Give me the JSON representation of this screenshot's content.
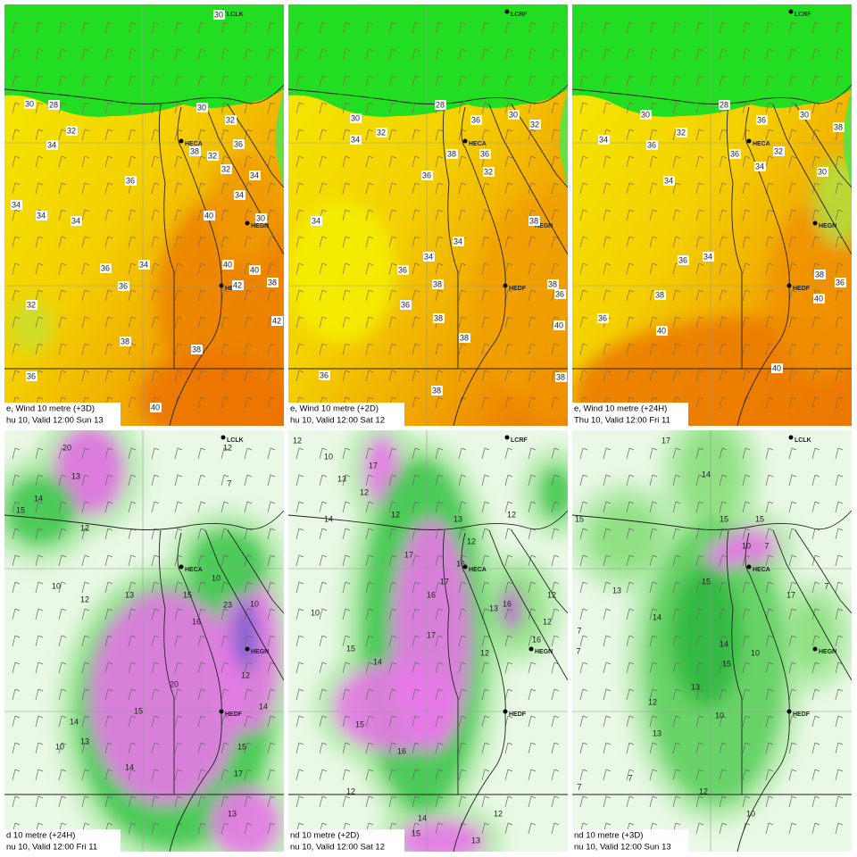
{
  "panels": [
    {
      "caption_1": "e, Wind  10 metre (+3D)",
      "caption_2": "hu 10, Valid 12:00 Sun 13",
      "stations": [
        "HECA",
        "HEGN",
        "HEDF",
        "LCLK"
      ],
      "labels": [
        "30",
        "28",
        "32",
        "34",
        "38",
        "36",
        "34",
        "34",
        "34",
        "36",
        "34",
        "36",
        "32",
        "38",
        "36",
        "40",
        "30",
        "32",
        "36",
        "32",
        "32",
        "34",
        "34",
        "40",
        "30",
        "40",
        "40",
        "42",
        "38",
        "42",
        "38",
        "30"
      ]
    },
    {
      "caption_1": "e, Wind  10 metre (+2D)",
      "caption_2": "hu 10, Valid 12:00 Sat 12",
      "stations": [
        "HECA",
        "HEGN",
        "HEDF",
        "LCRF"
      ],
      "labels": [
        "30",
        "28",
        "36",
        "30",
        "32",
        "34",
        "32",
        "38",
        "36",
        "36",
        "32",
        "34",
        "34",
        "38",
        "36",
        "34",
        "38",
        "36",
        "38",
        "38",
        "36",
        "38",
        "36",
        "40",
        "38",
        "38"
      ]
    },
    {
      "caption_1": "e, Wind  10 metre (+24H)",
      "caption_2": "Thu 10, Valid 12:00 Fri 11",
      "stations": [
        "HECA",
        "HEGN",
        "HEDF",
        "LCRF"
      ],
      "labels": [
        "30",
        "28",
        "36",
        "30",
        "34",
        "32",
        "36",
        "36",
        "32",
        "34",
        "30",
        "34",
        "38",
        "36",
        "34",
        "38",
        "36",
        "40",
        "38",
        "40",
        "36",
        "40"
      ]
    },
    {
      "caption_1": "d  10 metre (+24H)",
      "caption_2": "nu 10, Valid 12:00 Fri 11",
      "stations": [
        "HECA",
        "HEGN",
        "HEDF",
        "LCLK"
      ],
      "labels": [
        "20",
        "13",
        "14",
        "12",
        "12",
        "7",
        "10",
        "12",
        "13",
        "15",
        "10",
        "10",
        "23",
        "16",
        "20",
        "15",
        "14",
        "13",
        "10",
        "14",
        "17",
        "15",
        "12",
        "14",
        "13",
        "15"
      ]
    },
    {
      "caption_1": "nd  10 metre (+2D)",
      "caption_2": "nu 10, Valid 12:00 Sat 12",
      "stations": [
        "HECA",
        "HEGN",
        "HEDF",
        "LCRF"
      ],
      "labels": [
        "12",
        "10",
        "17",
        "13",
        "12",
        "14",
        "12",
        "13",
        "12",
        "12",
        "17",
        "16",
        "10",
        "17",
        "16",
        "12",
        "13",
        "16",
        "17",
        "12",
        "15",
        "14",
        "15",
        "16",
        "12",
        "14",
        "15",
        "12",
        "13",
        "16",
        "12"
      ]
    },
    {
      "caption_1": "nd  10 metre (+3D)",
      "caption_2": "nu 10, Valid 12:00 Sun 13",
      "stations": [
        "HECA",
        "HEGN",
        "HEDF",
        "LCLK"
      ],
      "labels": [
        "17",
        "14",
        "15",
        "15",
        "10",
        "15",
        "7",
        "7",
        "13",
        "15",
        "17",
        "14",
        "7",
        "14",
        "10",
        "15",
        "7",
        "13",
        "12",
        "13",
        "10",
        "7",
        "7",
        "12",
        "10"
      ]
    }
  ]
}
